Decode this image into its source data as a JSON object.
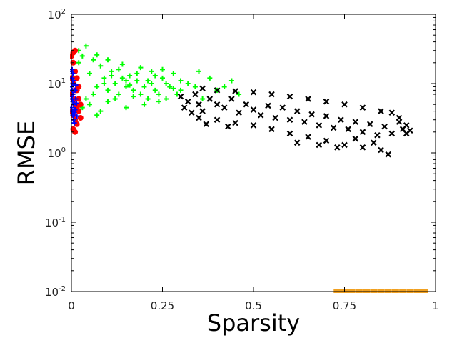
{
  "chart_data": {
    "type": "scatter",
    "title": "",
    "xlabel": "Sparsity",
    "ylabel": "RMSE",
    "xlim": [
      0,
      1
    ],
    "ylim": [
      0.01,
      100
    ],
    "yscale": "log",
    "grid": false,
    "legend": "none",
    "x_ticks": [
      {
        "value": 0,
        "label": "0"
      },
      {
        "value": 0.25,
        "label": "0.25"
      },
      {
        "value": 0.5,
        "label": "0.5"
      },
      {
        "value": 0.75,
        "label": "0.75"
      },
      {
        "value": 1,
        "label": "1"
      }
    ],
    "y_ticks": [
      {
        "value": 0.01,
        "base": "10",
        "exp": "-2"
      },
      {
        "value": 0.1,
        "base": "10",
        "exp": "-1"
      },
      {
        "value": 1,
        "base": "10",
        "exp": "0"
      },
      {
        "value": 10,
        "base": "10",
        "exp": "1"
      },
      {
        "value": 100,
        "base": "10",
        "exp": "2"
      }
    ],
    "series": [
      {
        "color": "#00ff00",
        "marker": "plus",
        "points": [
          [
            0.01,
            12
          ],
          [
            0.02,
            20
          ],
          [
            0.03,
            25
          ],
          [
            0.04,
            35
          ],
          [
            0.05,
            14
          ],
          [
            0.06,
            22
          ],
          [
            0.07,
            9
          ],
          [
            0.08,
            18
          ],
          [
            0.09,
            12
          ],
          [
            0.1,
            8
          ],
          [
            0.11,
            15
          ],
          [
            0.12,
            10
          ],
          [
            0.13,
            7
          ],
          [
            0.14,
            12
          ],
          [
            0.15,
            9
          ],
          [
            0.16,
            13
          ],
          [
            0.17,
            8
          ],
          [
            0.18,
            11
          ],
          [
            0.19,
            7
          ],
          [
            0.2,
            9
          ],
          [
            0.21,
            6
          ],
          [
            0.22,
            10
          ],
          [
            0.23,
            8
          ],
          [
            0.24,
            7
          ],
          [
            0.25,
            12
          ],
          [
            0.26,
            6
          ],
          [
            0.27,
            9
          ],
          [
            0.28,
            14
          ],
          [
            0.29,
            7
          ],
          [
            0.3,
            8
          ],
          [
            0.32,
            10
          ],
          [
            0.34,
            9
          ],
          [
            0.36,
            6
          ],
          [
            0.38,
            12
          ],
          [
            0.4,
            8
          ],
          [
            0.42,
            9
          ],
          [
            0.44,
            11
          ],
          [
            0.46,
            7
          ],
          [
            0.05,
            5
          ],
          [
            0.08,
            4
          ],
          [
            0.1,
            5.5
          ],
          [
            0.12,
            6
          ],
          [
            0.03,
            4.5
          ],
          [
            0.07,
            3.5
          ],
          [
            0.15,
            4.5
          ],
          [
            0.2,
            5
          ],
          [
            0.04,
            6
          ],
          [
            0.06,
            7
          ],
          [
            0.09,
            10
          ],
          [
            0.11,
            13
          ],
          [
            0.13,
            16
          ],
          [
            0.16,
            9.5
          ],
          [
            0.18,
            14
          ],
          [
            0.21,
            11
          ],
          [
            0.23,
            13
          ],
          [
            0.26,
            10
          ],
          [
            0.28,
            8.5
          ],
          [
            0.24,
            5.5
          ],
          [
            0.22,
            15
          ],
          [
            0.19,
            17
          ],
          [
            0.14,
            19
          ],
          [
            0.07,
            26
          ],
          [
            0.1,
            22
          ],
          [
            0.02,
            30
          ],
          [
            0.15,
            11
          ],
          [
            0.17,
            6.5
          ],
          [
            0.25,
            16
          ],
          [
            0.35,
            15
          ],
          [
            0.3,
            11
          ]
        ]
      },
      {
        "color": "#000000",
        "marker": "x",
        "points": [
          [
            0.3,
            6.5
          ],
          [
            0.31,
            4.5
          ],
          [
            0.32,
            5.5
          ],
          [
            0.34,
            7
          ],
          [
            0.35,
            5
          ],
          [
            0.36,
            4
          ],
          [
            0.38,
            6
          ],
          [
            0.4,
            5
          ],
          [
            0.42,
            4.5
          ],
          [
            0.44,
            6
          ],
          [
            0.46,
            3.8
          ],
          [
            0.48,
            5
          ],
          [
            0.5,
            4.2
          ],
          [
            0.52,
            3.5
          ],
          [
            0.54,
            4.8
          ],
          [
            0.56,
            3.2
          ],
          [
            0.58,
            4.5
          ],
          [
            0.6,
            3
          ],
          [
            0.62,
            4
          ],
          [
            0.64,
            2.8
          ],
          [
            0.66,
            3.6
          ],
          [
            0.68,
            2.5
          ],
          [
            0.7,
            3.4
          ],
          [
            0.72,
            2.3
          ],
          [
            0.74,
            3
          ],
          [
            0.76,
            2.2
          ],
          [
            0.78,
            2.8
          ],
          [
            0.8,
            2
          ],
          [
            0.82,
            2.6
          ],
          [
            0.84,
            1.8
          ],
          [
            0.86,
            2.4
          ],
          [
            0.88,
            1.9
          ],
          [
            0.9,
            2.8
          ],
          [
            0.91,
            2.2
          ],
          [
            0.92,
            1.9
          ],
          [
            0.35,
            3.2
          ],
          [
            0.4,
            3
          ],
          [
            0.45,
            2.7
          ],
          [
            0.5,
            2.5
          ],
          [
            0.55,
            2.2
          ],
          [
            0.6,
            1.9
          ],
          [
            0.65,
            1.7
          ],
          [
            0.7,
            1.5
          ],
          [
            0.75,
            1.3
          ],
          [
            0.8,
            1.2
          ],
          [
            0.85,
            1.1
          ],
          [
            0.87,
            0.95
          ],
          [
            0.55,
            7
          ],
          [
            0.6,
            6.5
          ],
          [
            0.65,
            6
          ],
          [
            0.7,
            5.5
          ],
          [
            0.75,
            5
          ],
          [
            0.5,
            7.5
          ],
          [
            0.45,
            7.8
          ],
          [
            0.4,
            8
          ],
          [
            0.36,
            8.5
          ],
          [
            0.8,
            4.5
          ],
          [
            0.85,
            4
          ],
          [
            0.88,
            3.8
          ],
          [
            0.9,
            3.2
          ],
          [
            0.92,
            2.5
          ],
          [
            0.93,
            2.1
          ],
          [
            0.33,
            3.8
          ],
          [
            0.37,
            2.6
          ],
          [
            0.43,
            2.4
          ],
          [
            0.62,
            1.4
          ],
          [
            0.68,
            1.3
          ],
          [
            0.73,
            1.2
          ],
          [
            0.78,
            1.6
          ],
          [
            0.83,
            1.4
          ]
        ]
      },
      {
        "color": "#ff0000",
        "marker": "circle",
        "points": [
          [
            0,
            25
          ],
          [
            0.005,
            20
          ],
          [
            0.01,
            15
          ],
          [
            0,
            12
          ],
          [
            0.005,
            10
          ],
          [
            0.01,
            8
          ],
          [
            0,
            7
          ],
          [
            0.005,
            6
          ],
          [
            0.01,
            5
          ],
          [
            0.015,
            4.5
          ],
          [
            0,
            4
          ],
          [
            0.005,
            3.5
          ],
          [
            0.01,
            3
          ],
          [
            0.015,
            2.6
          ],
          [
            0.005,
            2.2
          ],
          [
            0.01,
            2
          ],
          [
            0.02,
            6
          ],
          [
            0.025,
            5
          ],
          [
            0.02,
            4
          ],
          [
            0.015,
            8
          ],
          [
            0.01,
            30
          ],
          [
            0.005,
            28
          ],
          [
            0.015,
            12
          ],
          [
            0.02,
            9
          ],
          [
            0.025,
            3.2
          ]
        ]
      },
      {
        "color": "#0000ff",
        "marker": "plus",
        "points": [
          [
            0,
            15
          ],
          [
            0.002,
            12
          ],
          [
            0.004,
            10
          ],
          [
            0,
            9
          ],
          [
            0.002,
            8
          ],
          [
            0.004,
            7
          ],
          [
            0,
            6.5
          ],
          [
            0.002,
            6
          ],
          [
            0.004,
            5.5
          ],
          [
            0.006,
            5
          ],
          [
            0,
            4.5
          ],
          [
            0.002,
            4
          ],
          [
            0.004,
            3.5
          ],
          [
            0.006,
            3
          ],
          [
            0.008,
            2.7
          ],
          [
            0.01,
            8
          ],
          [
            0.012,
            6
          ],
          [
            0.01,
            4.2
          ],
          [
            0.008,
            3.8
          ],
          [
            0.006,
            11
          ],
          [
            0.004,
            14
          ],
          [
            0.002,
            16
          ],
          [
            0.012,
            9.5
          ],
          [
            0.014,
            5.2
          ],
          [
            0.015,
            3.4
          ]
        ]
      },
      {
        "color": "#f0a020",
        "marker": "square",
        "points": [
          [
            0.73,
            0.01
          ],
          [
            0.75,
            0.01
          ],
          [
            0.77,
            0.01
          ],
          [
            0.79,
            0.01
          ],
          [
            0.81,
            0.01
          ],
          [
            0.83,
            0.01
          ],
          [
            0.85,
            0.01
          ],
          [
            0.87,
            0.01
          ],
          [
            0.89,
            0.01
          ],
          [
            0.91,
            0.01
          ],
          [
            0.93,
            0.01
          ],
          [
            0.95,
            0.01
          ],
          [
            0.97,
            0.01
          ]
        ]
      }
    ]
  }
}
